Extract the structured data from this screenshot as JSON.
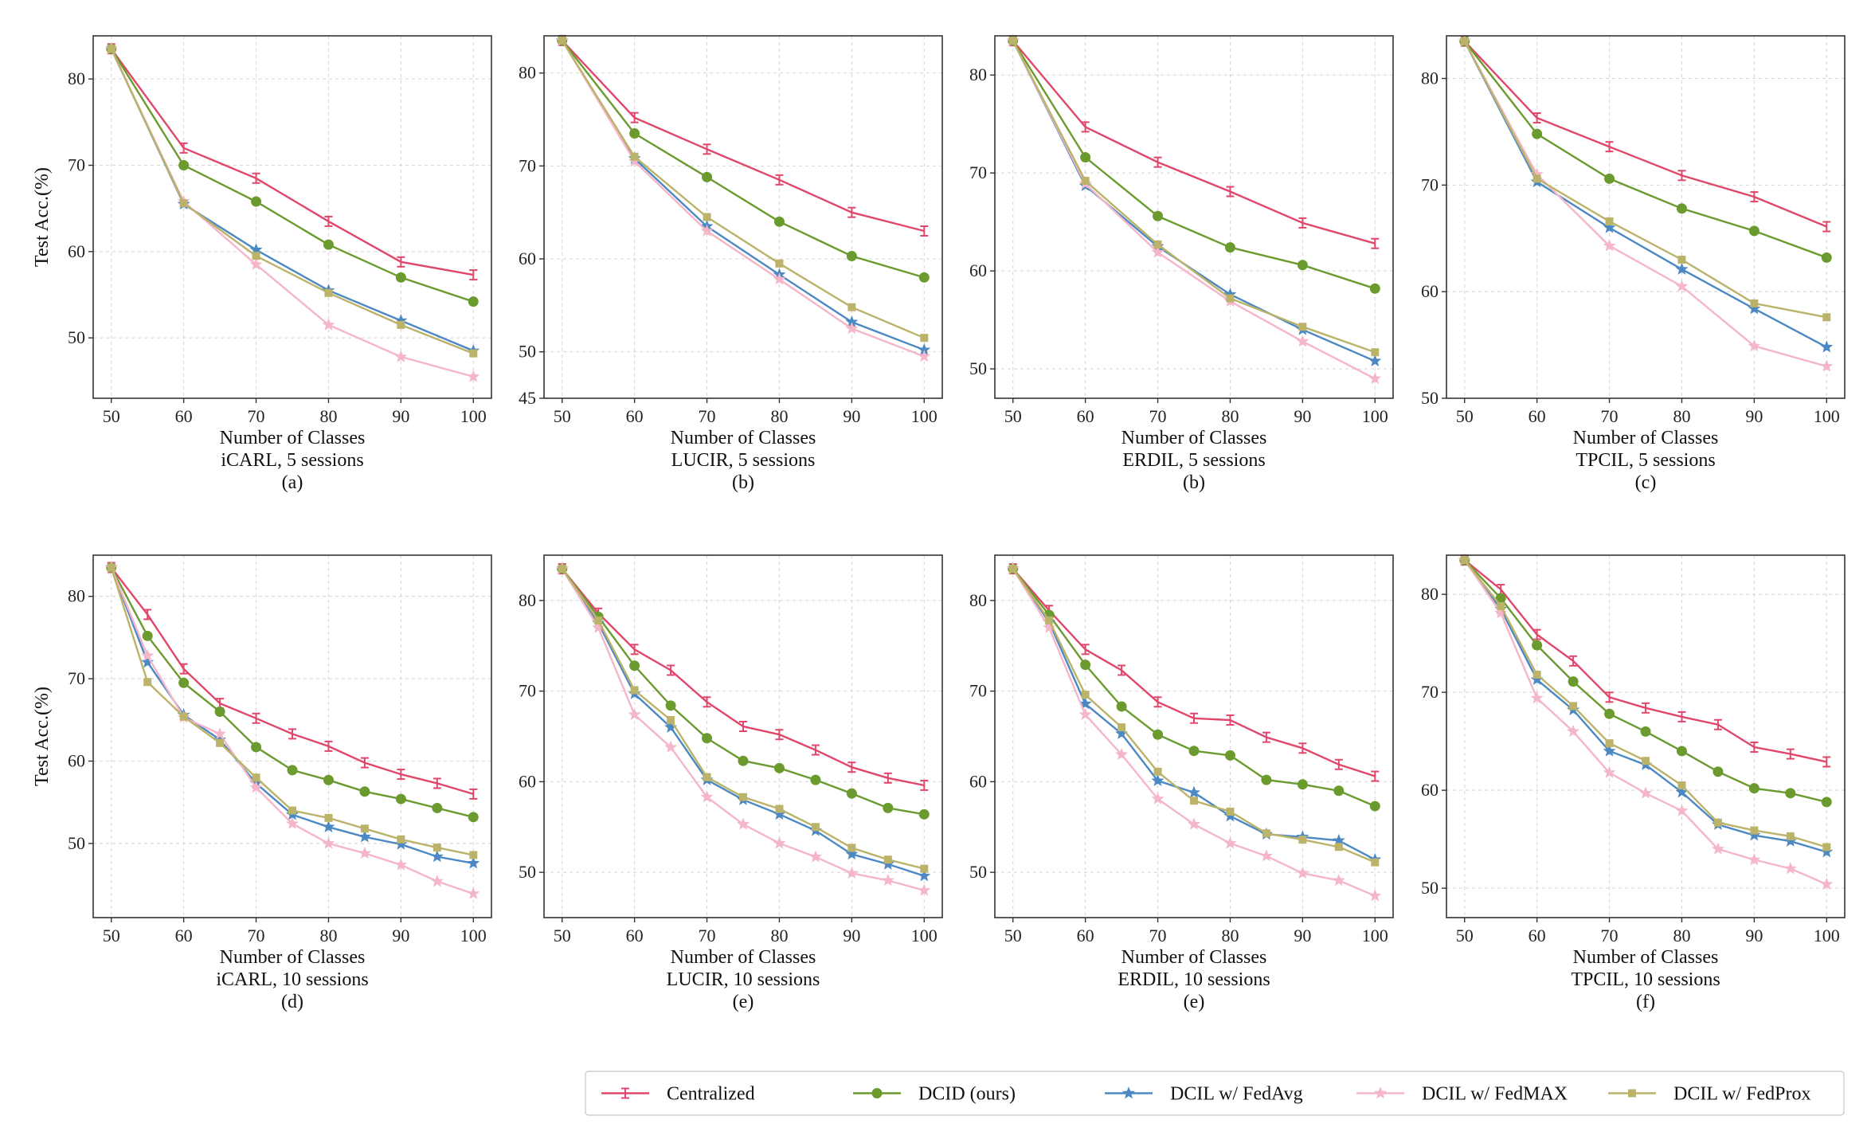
{
  "figure": {
    "ylabel": "Test Acc.(%)",
    "legend": {
      "placement": "bottom-right",
      "items": [
        {
          "name": "Centralized",
          "color": "#e0476a",
          "marker": "none"
        },
        {
          "name": "DCID (ours)",
          "color": "#6b9a2f",
          "marker": "circle"
        },
        {
          "name": "DCIL w/ FedAvg",
          "color": "#4c89c4",
          "marker": "star"
        },
        {
          "name": "DCIL w/ FedMAX",
          "color": "#f4b6c8",
          "marker": "star"
        },
        {
          "name": "DCIL w/ FedProx",
          "color": "#bcb36a",
          "marker": "square"
        }
      ]
    }
  },
  "chart_data": [
    {
      "type": "line",
      "xlabel": "Number of Classes",
      "subtitle": "iCARL, 5 sessions",
      "panel": "(a)",
      "ylabel": "Test Acc.(%)",
      "ylim": [
        43,
        85
      ],
      "yticks": [
        50,
        60,
        70,
        80
      ],
      "xticks": [
        50,
        60,
        70,
        80,
        90,
        100
      ],
      "x": [
        50,
        60,
        70,
        80,
        90,
        100
      ],
      "series": [
        {
          "name": "Centralized",
          "values": [
            83.5,
            72.0,
            68.5,
            63.5,
            58.8,
            57.3
          ]
        },
        {
          "name": "DCID (ours)",
          "values": [
            83.5,
            70.0,
            65.8,
            60.8,
            57.0,
            54.2
          ]
        },
        {
          "name": "DCIL w/ FedAvg",
          "values": [
            83.5,
            65.5,
            60.2,
            55.5,
            52.0,
            48.5
          ]
        },
        {
          "name": "DCIL w/ FedMAX",
          "values": [
            83.5,
            65.8,
            58.5,
            51.5,
            47.8,
            45.5
          ]
        },
        {
          "name": "DCIL w/ FedProx",
          "values": [
            83.5,
            65.6,
            59.5,
            55.2,
            51.5,
            48.2
          ]
        }
      ]
    },
    {
      "type": "line",
      "xlabel": "Number of Classes",
      "subtitle": "LUCIR, 5 sessions",
      "panel": "(b)",
      "ylabel": "",
      "ylim": [
        45,
        84
      ],
      "yticks": [
        45,
        50,
        60,
        70,
        80
      ],
      "xticks": [
        50,
        60,
        70,
        80,
        90,
        100
      ],
      "x": [
        50,
        60,
        70,
        80,
        90,
        100
      ],
      "series": [
        {
          "name": "Centralized",
          "values": [
            83.5,
            75.2,
            71.8,
            68.5,
            65.0,
            63.0
          ]
        },
        {
          "name": "DCID (ours)",
          "values": [
            83.5,
            73.5,
            68.8,
            64.0,
            60.3,
            58.0
          ]
        },
        {
          "name": "DCIL w/ FedAvg",
          "values": [
            83.5,
            70.8,
            63.5,
            58.3,
            53.2,
            50.2
          ]
        },
        {
          "name": "DCIL w/ FedMAX",
          "values": [
            83.5,
            70.5,
            63.0,
            57.8,
            52.5,
            49.5
          ]
        },
        {
          "name": "DCIL w/ FedProx",
          "values": [
            83.5,
            71.0,
            64.5,
            59.5,
            54.8,
            51.5
          ]
        }
      ]
    },
    {
      "type": "line",
      "xlabel": "Number of Classes",
      "subtitle": "ERDIL, 5 sessions",
      "panel": "(b)",
      "ylabel": "",
      "ylim": [
        47,
        84
      ],
      "yticks": [
        50,
        60,
        70,
        80
      ],
      "xticks": [
        50,
        60,
        70,
        80,
        90,
        100
      ],
      "x": [
        50,
        60,
        70,
        80,
        90,
        100
      ],
      "series": [
        {
          "name": "Centralized",
          "values": [
            83.5,
            74.7,
            71.1,
            68.1,
            64.9,
            62.8
          ]
        },
        {
          "name": "DCID (ours)",
          "values": [
            83.5,
            71.6,
            65.6,
            62.4,
            60.6,
            58.2
          ]
        },
        {
          "name": "DCIL w/ FedAvg",
          "values": [
            83.5,
            68.7,
            62.5,
            57.6,
            54.0,
            50.8
          ]
        },
        {
          "name": "DCIL w/ FedMAX",
          "values": [
            83.5,
            68.9,
            61.9,
            56.9,
            52.8,
            49.0
          ]
        },
        {
          "name": "DCIL w/ FedProx",
          "values": [
            83.5,
            69.2,
            62.7,
            57.2,
            54.3,
            51.7
          ]
        }
      ]
    },
    {
      "type": "line",
      "xlabel": "Number of Classes",
      "subtitle": "TPCIL, 5 sessions",
      "panel": "(c)",
      "ylabel": "",
      "ylim": [
        50,
        84
      ],
      "yticks": [
        50,
        60,
        70,
        80
      ],
      "xticks": [
        50,
        60,
        70,
        80,
        90,
        100
      ],
      "x": [
        50,
        60,
        70,
        80,
        90,
        100
      ],
      "series": [
        {
          "name": "Centralized",
          "values": [
            83.5,
            76.3,
            73.6,
            70.9,
            68.9,
            66.1
          ]
        },
        {
          "name": "DCID (ours)",
          "values": [
            83.5,
            74.8,
            70.6,
            67.8,
            65.7,
            63.2
          ]
        },
        {
          "name": "DCIL w/ FedAvg",
          "values": [
            83.5,
            70.3,
            66.0,
            62.1,
            58.4,
            54.8
          ]
        },
        {
          "name": "DCIL w/ FedMAX",
          "values": [
            83.5,
            71.0,
            64.3,
            60.5,
            54.9,
            53.0
          ]
        },
        {
          "name": "DCIL w/ FedProx",
          "values": [
            83.5,
            70.6,
            66.6,
            63.0,
            58.9,
            57.6
          ]
        }
      ]
    },
    {
      "type": "line",
      "xlabel": "Number of Classes",
      "subtitle": "iCARL, 10 sessions",
      "panel": "(d)",
      "ylabel": "Test Acc.(%)",
      "ylim": [
        41,
        85
      ],
      "yticks": [
        50,
        60,
        70,
        80
      ],
      "xticks": [
        50,
        60,
        70,
        80,
        90,
        100
      ],
      "x": [
        50,
        55,
        60,
        65,
        70,
        75,
        80,
        85,
        90,
        95,
        100
      ],
      "series": [
        {
          "name": "Centralized",
          "values": [
            83.5,
            77.8,
            71.2,
            67.0,
            65.2,
            63.3,
            61.8,
            59.8,
            58.4,
            57.3,
            56.0
          ]
        },
        {
          "name": "DCID (ours)",
          "values": [
            83.5,
            75.2,
            69.5,
            66.0,
            61.7,
            58.9,
            57.7,
            56.3,
            55.4,
            54.3,
            53.2
          ]
        },
        {
          "name": "DCIL w/ FedAvg",
          "values": [
            83.5,
            72.0,
            65.6,
            62.6,
            57.3,
            53.5,
            52.0,
            50.8,
            49.9,
            48.4,
            47.6
          ]
        },
        {
          "name": "DCIL w/ FedMAX",
          "values": [
            83.5,
            72.8,
            65.3,
            63.3,
            56.8,
            52.4,
            50.0,
            48.8,
            47.4,
            45.4,
            43.9
          ]
        },
        {
          "name": "DCIL w/ FedProx",
          "values": [
            83.5,
            69.6,
            65.4,
            62.2,
            58.0,
            54.0,
            53.1,
            51.8,
            50.5,
            49.5,
            48.6
          ]
        }
      ]
    },
    {
      "type": "line",
      "xlabel": "Number of Classes",
      "subtitle": "LUCIR, 10 sessions",
      "panel": "(e)",
      "ylabel": "",
      "ylim": [
        45,
        85
      ],
      "yticks": [
        50,
        60,
        70,
        80
      ],
      "xticks": [
        50,
        60,
        70,
        80,
        90,
        100
      ],
      "x": [
        50,
        55,
        60,
        65,
        70,
        75,
        80,
        85,
        90,
        95,
        100
      ],
      "series": [
        {
          "name": "Centralized",
          "values": [
            83.5,
            78.6,
            74.6,
            72.3,
            68.8,
            66.1,
            65.2,
            63.5,
            61.6,
            60.4,
            59.6
          ]
        },
        {
          "name": "DCID (ours)",
          "values": [
            83.5,
            78.2,
            72.8,
            68.4,
            64.8,
            62.3,
            61.5,
            60.2,
            58.7,
            57.1,
            56.4
          ]
        },
        {
          "name": "DCIL w/ FedAvg",
          "values": [
            83.5,
            77.5,
            69.7,
            66.0,
            60.2,
            58.0,
            56.4,
            54.6,
            52.0,
            50.9,
            49.6
          ]
        },
        {
          "name": "DCIL w/ FedMAX",
          "values": [
            83.5,
            77.0,
            67.4,
            63.8,
            58.3,
            55.3,
            53.2,
            51.7,
            49.9,
            49.1,
            48.0
          ]
        },
        {
          "name": "DCIL w/ FedProx",
          "values": [
            83.5,
            77.8,
            70.1,
            66.8,
            60.5,
            58.3,
            57.0,
            55.0,
            52.7,
            51.4,
            50.4
          ]
        }
      ]
    },
    {
      "type": "line",
      "xlabel": "Number of Classes",
      "subtitle": "ERDIL, 10 sessions",
      "panel": "(e)",
      "ylabel": "",
      "ylim": [
        45,
        85
      ],
      "yticks": [
        50,
        60,
        70,
        80
      ],
      "xticks": [
        50,
        60,
        70,
        80,
        90,
        100
      ],
      "x": [
        50,
        55,
        60,
        65,
        70,
        75,
        80,
        85,
        90,
        95,
        100
      ],
      "series": [
        {
          "name": "Centralized",
          "values": [
            83.5,
            78.9,
            74.6,
            72.3,
            68.8,
            67.0,
            66.8,
            64.9,
            63.7,
            61.9,
            60.6
          ]
        },
        {
          "name": "DCID (ours)",
          "values": [
            83.5,
            78.4,
            72.9,
            68.3,
            65.2,
            63.4,
            62.9,
            60.2,
            59.7,
            59.0,
            57.3
          ]
        },
        {
          "name": "DCIL w/ FedAvg",
          "values": [
            83.5,
            77.6,
            68.6,
            65.3,
            60.1,
            58.8,
            56.2,
            54.2,
            53.9,
            53.5,
            51.4
          ]
        },
        {
          "name": "DCIL w/ FedMAX",
          "values": [
            83.5,
            77.0,
            67.4,
            63.0,
            58.1,
            55.3,
            53.2,
            51.8,
            49.9,
            49.1,
            47.4
          ]
        },
        {
          "name": "DCIL w/ FedProx",
          "values": [
            83.5,
            77.8,
            69.6,
            66.0,
            61.1,
            57.9,
            56.7,
            54.3,
            53.6,
            52.8,
            51.1
          ]
        }
      ]
    },
    {
      "type": "line",
      "xlabel": "Number of Classes",
      "subtitle": "TPCIL, 10 sessions",
      "panel": "(f)",
      "ylabel": "",
      "ylim": [
        47,
        84
      ],
      "yticks": [
        50,
        60,
        70,
        80
      ],
      "xticks": [
        50,
        60,
        70,
        80,
        90,
        100
      ],
      "x": [
        50,
        55,
        60,
        65,
        70,
        75,
        80,
        85,
        90,
        95,
        100
      ],
      "series": [
        {
          "name": "Centralized",
          "values": [
            83.5,
            80.5,
            75.9,
            73.2,
            69.5,
            68.4,
            67.5,
            66.7,
            64.4,
            63.7,
            62.9
          ]
        },
        {
          "name": "DCID (ours)",
          "values": [
            83.5,
            79.6,
            74.8,
            71.1,
            67.8,
            66.0,
            64.0,
            61.9,
            60.2,
            59.7,
            58.8
          ]
        },
        {
          "name": "DCIL w/ FedAvg",
          "values": [
            83.5,
            78.5,
            71.3,
            68.2,
            64.0,
            62.6,
            59.8,
            56.5,
            55.4,
            54.8,
            53.7
          ]
        },
        {
          "name": "DCIL w/ FedMAX",
          "values": [
            83.5,
            78.1,
            69.4,
            66.0,
            61.8,
            59.7,
            57.9,
            54.0,
            52.9,
            52.0,
            50.4
          ]
        },
        {
          "name": "DCIL w/ FedProx",
          "values": [
            83.5,
            78.8,
            71.8,
            68.6,
            64.8,
            63.0,
            60.5,
            56.7,
            55.9,
            55.3,
            54.2
          ]
        }
      ]
    }
  ]
}
